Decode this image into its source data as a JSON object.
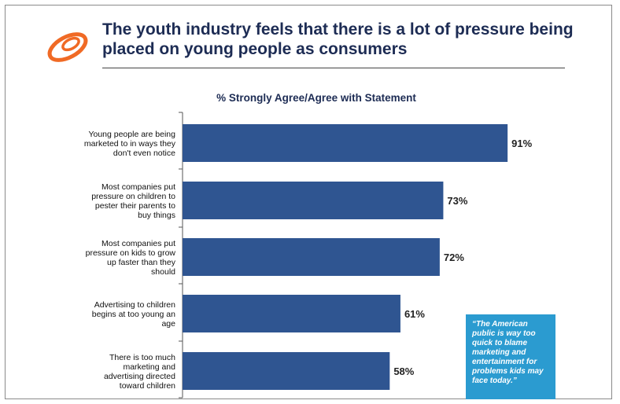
{
  "title": "The youth industry feels that there is a lot of pressure being placed on young people as consumers",
  "quote": "“The American public is way too quick to blame marketing and entertainment for problems kids may face today.”",
  "colors": {
    "bar": "#2f5591",
    "title": "#1d2c54",
    "logo": "#f06a25",
    "callout": "#2b9bd0"
  },
  "chart_data": {
    "type": "bar",
    "orientation": "horizontal",
    "title": "% Strongly Agree/Agree with Statement",
    "categories": [
      [
        "Young people are being",
        "marketed to in ways they",
        "don't even notice"
      ],
      [
        "Most companies put",
        "pressure on children to",
        "pester their parents to",
        "buy things"
      ],
      [
        "Most companies put",
        "pressure on kids to grow",
        "up faster than they",
        "should"
      ],
      [
        "Advertising to children",
        "begins at too young an",
        "age"
      ],
      [
        "There is too much",
        "marketing and",
        "advertising directed",
        "toward children"
      ]
    ],
    "values": [
      91,
      73,
      72,
      61,
      58
    ],
    "data_labels": [
      "91%",
      "73%",
      "72%",
      "61%",
      "58%"
    ],
    "xlim": [
      0,
      100
    ],
    "grid": false,
    "legend": "none"
  }
}
